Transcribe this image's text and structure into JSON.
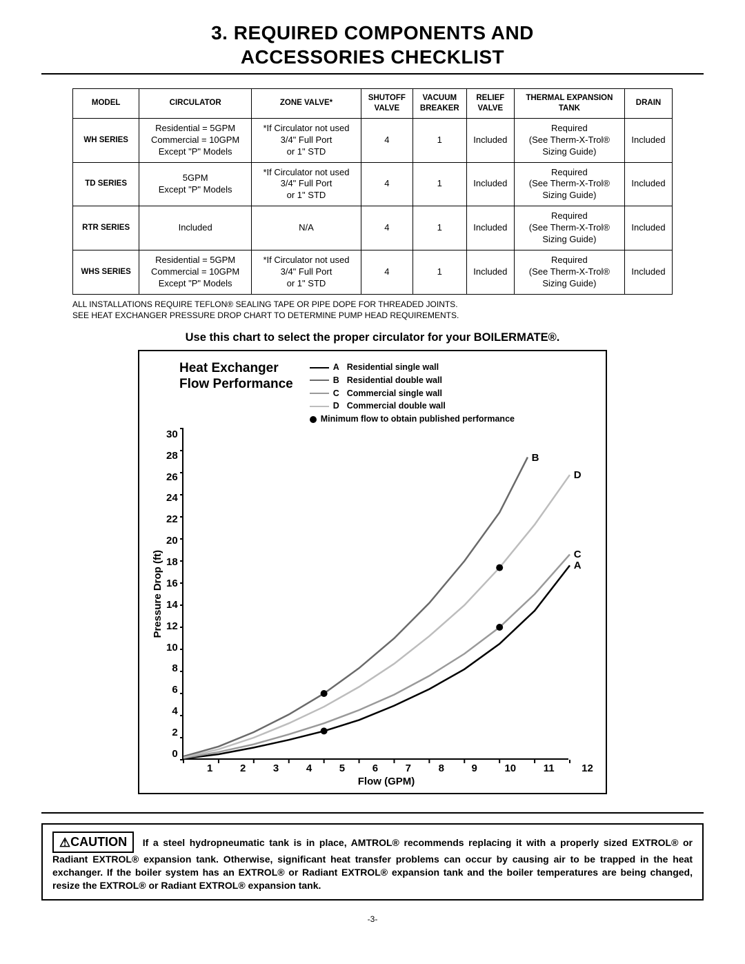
{
  "title_line1": "3. REQUIRED COMPONENTS AND",
  "title_line2": "ACCESSORIES CHECKLIST",
  "table": {
    "headers": [
      "MODEL",
      "CIRCULATOR",
      "ZONE VALVE*",
      "SHUTOFF VALVE",
      "VACUUM BREAKER",
      "RELIEF VALVE",
      "THERMAL EXPANSION TANK",
      "DRAIN"
    ],
    "rows": [
      {
        "model": "WH SERIES",
        "circulator": "Residential = 5GPM\nCommercial = 10GPM\nExcept \"P\" Models",
        "zone": "*If Circulator not used\n3/4\" Full Port\nor 1\" STD",
        "shutoff": "4",
        "vacuum": "1",
        "relief": "Included",
        "thermal": "Required\n(See Therm-X-Trol®\nSizing Guide)",
        "drain": "Included"
      },
      {
        "model": "TD SERIES",
        "circulator": "5GPM\nExcept \"P\" Models",
        "zone": "*If Circulator not used\n3/4\" Full Port\nor 1\" STD",
        "shutoff": "4",
        "vacuum": "1",
        "relief": "Included",
        "thermal": "Required\n(See Therm-X-Trol®\nSizing Guide)",
        "drain": "Included"
      },
      {
        "model": "RTR SERIES",
        "circulator": "Included",
        "zone": "N/A",
        "shutoff": "4",
        "vacuum": "1",
        "relief": "Included",
        "thermal": "Required\n(See Therm-X-Trol®\nSizing Guide)",
        "drain": "Included"
      },
      {
        "model": "WHS SERIES",
        "circulator": "Residential = 5GPM\nCommercial = 10GPM\nExcept \"P\" Models",
        "zone": "*If Circulator not used\n3/4\" Full Port\nor 1\" STD",
        "shutoff": "4",
        "vacuum": "1",
        "relief": "Included",
        "thermal": "Required\n(See Therm-X-Trol®\nSizing Guide)",
        "drain": "Included"
      }
    ],
    "note1": "ALL INSTALLATIONS REQUIRE TEFLON® SEALING TAPE OR PIPE DOPE FOR THREADED JOINTS.",
    "note2": "SEE HEAT EXCHANGER PRESSURE DROP CHART TO DETERMINE PUMP HEAD REQUIREMENTS."
  },
  "chart_caption": "Use this chart to select the proper circulator for your BOILERMATE®.",
  "chart": {
    "title": "Heat Exchanger\nFlow Performance",
    "type": "line",
    "xlabel": "Flow (GPM)",
    "ylabel": "Pressure Drop (ft)",
    "xlim": [
      1,
      12
    ],
    "ylim": [
      0,
      30
    ],
    "xticks": [
      1,
      2,
      3,
      4,
      5,
      6,
      7,
      8,
      9,
      10,
      11,
      12
    ],
    "yticks": [
      0,
      2,
      4,
      6,
      8,
      10,
      12,
      14,
      16,
      18,
      20,
      22,
      24,
      26,
      28,
      30
    ],
    "grid_color": "#000000",
    "background_color": "#ffffff",
    "line_width": 2.5,
    "marker_radius": 5,
    "legend": [
      {
        "key": "A",
        "label": "Residential single wall",
        "color": "#000000"
      },
      {
        "key": "B",
        "label": "Residential double wall",
        "color": "#6a6a6a"
      },
      {
        "key": "C",
        "label": "Commercial single wall",
        "color": "#9a9a9a"
      },
      {
        "key": "D",
        "label": "Commercial double wall",
        "color": "#bdbdbd"
      },
      {
        "key": "dot",
        "label": "Minimum flow to obtain published performance",
        "is_marker": true
      }
    ],
    "series": {
      "A": {
        "color": "#000000",
        "end_label": "A",
        "points": [
          [
            1,
            0.1
          ],
          [
            2,
            0.5
          ],
          [
            3,
            1.1
          ],
          [
            4,
            1.8
          ],
          [
            5,
            2.6
          ],
          [
            6,
            3.6
          ],
          [
            7,
            4.9
          ],
          [
            8,
            6.4
          ],
          [
            9,
            8.2
          ],
          [
            10,
            10.5
          ],
          [
            11,
            13.5
          ],
          [
            12,
            17.6
          ]
        ]
      },
      "B": {
        "color": "#6a6a6a",
        "end_label": "B",
        "points": [
          [
            1,
            0.3
          ],
          [
            2,
            1.2
          ],
          [
            3,
            2.5
          ],
          [
            4,
            4.1
          ],
          [
            5,
            6.0
          ],
          [
            6,
            8.3
          ],
          [
            7,
            11.0
          ],
          [
            8,
            14.2
          ],
          [
            9,
            18.0
          ],
          [
            10,
            22.4
          ],
          [
            10.8,
            27.4
          ]
        ]
      },
      "C": {
        "color": "#9a9a9a",
        "end_label": "C",
        "points": [
          [
            1,
            0.15
          ],
          [
            2,
            0.7
          ],
          [
            3,
            1.4
          ],
          [
            4,
            2.3
          ],
          [
            5,
            3.3
          ],
          [
            6,
            4.5
          ],
          [
            7,
            5.9
          ],
          [
            8,
            7.6
          ],
          [
            9,
            9.6
          ],
          [
            10,
            12.0
          ],
          [
            11,
            15.0
          ],
          [
            12,
            18.6
          ]
        ]
      },
      "D": {
        "color": "#bdbdbd",
        "end_label": "D",
        "points": [
          [
            1,
            0.2
          ],
          [
            2,
            0.95
          ],
          [
            3,
            2.0
          ],
          [
            4,
            3.3
          ],
          [
            5,
            4.8
          ],
          [
            6,
            6.6
          ],
          [
            7,
            8.7
          ],
          [
            8,
            11.2
          ],
          [
            9,
            14.0
          ],
          [
            10,
            17.4
          ],
          [
            11,
            21.3
          ],
          [
            12,
            25.8
          ]
        ]
      }
    },
    "markers": [
      {
        "series": "A",
        "x": 5,
        "y": 2.6
      },
      {
        "series": "B",
        "x": 5,
        "y": 6.0
      },
      {
        "series": "C",
        "x": 10,
        "y": 12.0
      },
      {
        "series": "D",
        "x": 10,
        "y": 17.4
      }
    ]
  },
  "caution": {
    "label": "CAUTION",
    "text": "If a steel hydropneumatic tank is in place, AMTROL® recommends replacing it with a properly sized EXTROL® or Radiant EXTROL® expansion tank. Otherwise, significant heat transfer problems can occur by causing air to be trapped in the heat exchanger. If the boiler system has an EXTROL® or Radiant EXTROL® expansion tank and the boiler temperatures are being changed, resize the EXTROL® or Radiant EXTROL® expansion tank."
  },
  "page_number": "-3-"
}
